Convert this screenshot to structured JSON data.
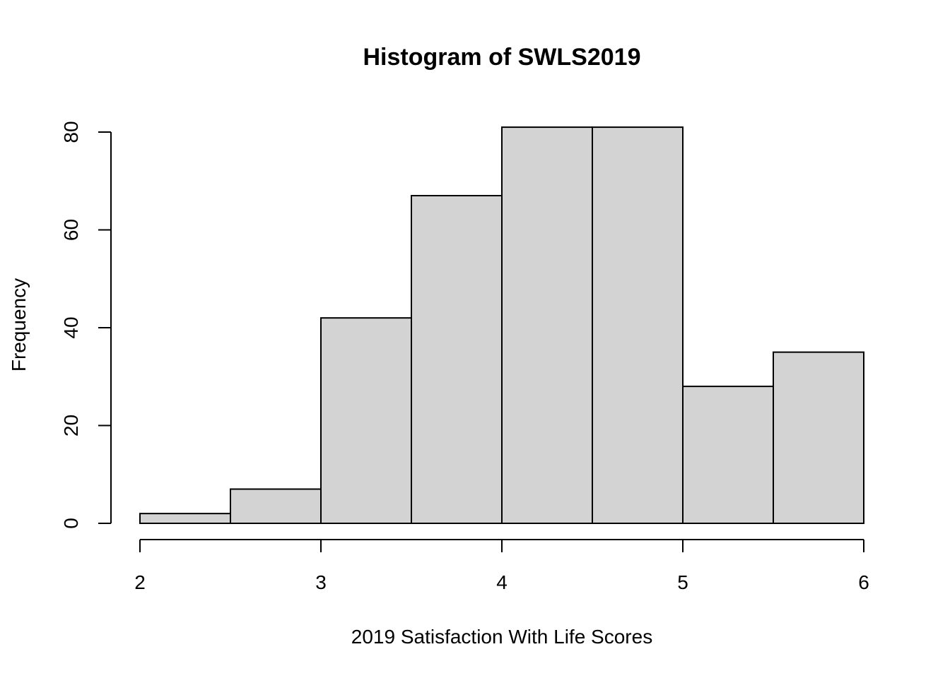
{
  "chart_data": {
    "type": "bar",
    "title": "Histogram of SWLS2019",
    "xlabel": "2019 Satisfaction With Life Scores",
    "ylabel": "Frequency",
    "bins": [
      {
        "start": 2.0,
        "end": 2.5,
        "count": 2
      },
      {
        "start": 2.5,
        "end": 3.0,
        "count": 7
      },
      {
        "start": 3.0,
        "end": 3.5,
        "count": 42
      },
      {
        "start": 3.5,
        "end": 4.0,
        "count": 67
      },
      {
        "start": 4.0,
        "end": 4.5,
        "count": 81
      },
      {
        "start": 4.5,
        "end": 5.0,
        "count": 81
      },
      {
        "start": 5.0,
        "end": 5.5,
        "count": 28
      },
      {
        "start": 5.5,
        "end": 6.0,
        "count": 35
      }
    ],
    "xlim": [
      2,
      6
    ],
    "ylim": [
      0,
      80
    ],
    "x_ticks": [
      2,
      3,
      4,
      5,
      6
    ],
    "y_ticks": [
      0,
      20,
      40,
      60,
      80
    ],
    "grid": false,
    "legend": "none",
    "colors": {
      "bar_fill": "#d3d3d3",
      "bar_stroke": "#000000"
    }
  }
}
